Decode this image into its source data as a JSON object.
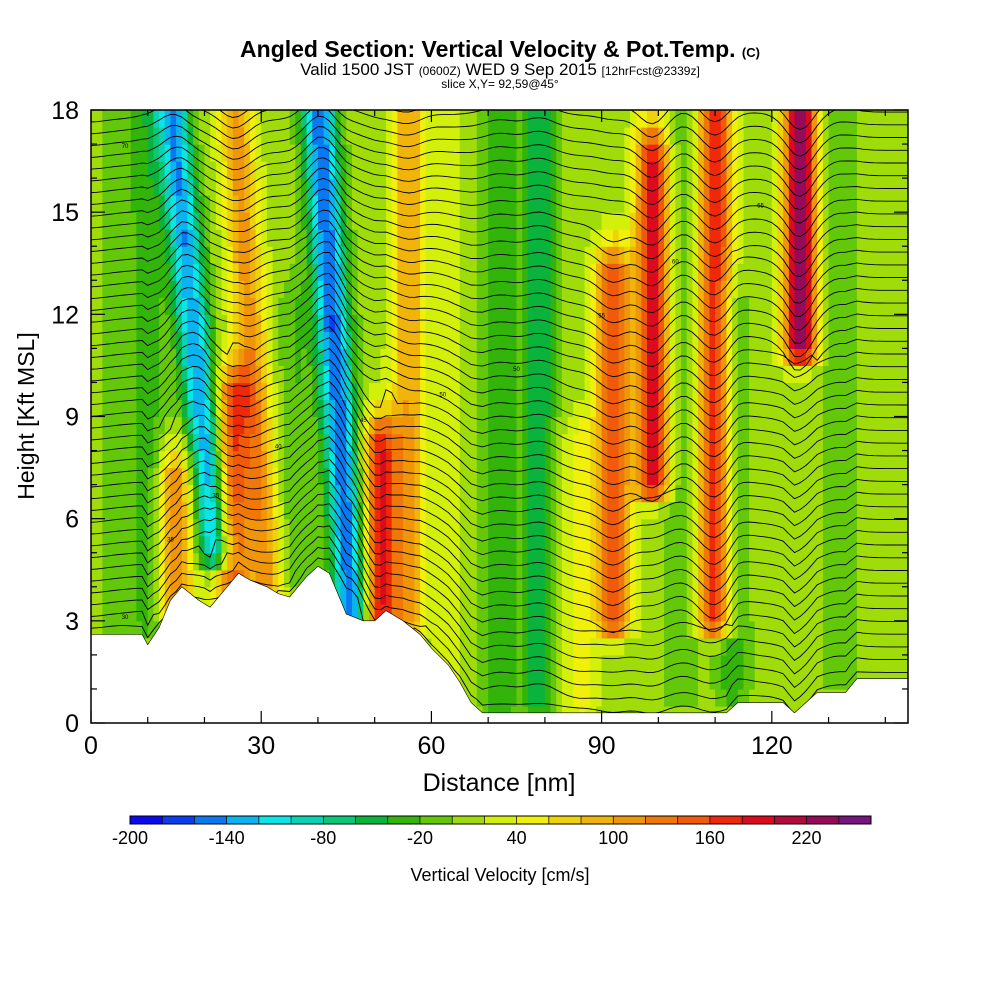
{
  "header": {
    "title": "Angled Section: Vertical Velocity & Pot.Temp.",
    "title_tag": "(C)",
    "valid_prefix": "Valid 1500 JST",
    "valid_zulu": "(0600Z)",
    "valid_day": "WED 9 Sep 2015",
    "forecast_tag": "[12hrFcst@2339z]",
    "slice": "slice X,Y= 92,59@45°"
  },
  "chart_data": {
    "type": "heatmap",
    "xlabel": "Distance [nm]",
    "ylabel": "Height [Kft MSL]",
    "xlim": [
      0,
      144
    ],
    "ylim": [
      0,
      18
    ],
    "x_ticks": [
      0,
      30,
      60,
      90,
      120
    ],
    "x_tick_labels": [
      "0",
      "30",
      "60",
      "90",
      "120"
    ],
    "y_ticks": [
      0,
      3,
      6,
      9,
      12,
      15,
      18
    ],
    "y_tick_labels": [
      "0",
      "3",
      "6",
      "9",
      "12",
      "15",
      "18"
    ],
    "colorbar": {
      "label": "Vertical Velocity [cm/s]",
      "min": -200,
      "max": 250,
      "step": 20,
      "tick_labels": [
        "-200",
        "-140",
        "-80",
        "-20",
        "40",
        "100",
        "160",
        "220"
      ],
      "colors": [
        "#0a0af0",
        "#0a3cf0",
        "#0a78f0",
        "#0ab4f0",
        "#0ae6e6",
        "#0ad2b4",
        "#0ac878",
        "#0ab43c",
        "#32b40a",
        "#64c80a",
        "#a0dc0a",
        "#d2f00a",
        "#f0f00a",
        "#f0d20a",
        "#f0b40a",
        "#f0960a",
        "#f0780a",
        "#f05a0a",
        "#f0280a",
        "#dc0a1e",
        "#b40a3c",
        "#960a5a",
        "#78147d"
      ]
    },
    "velocity_features": [
      {
        "x": 5,
        "bottom": 2.7,
        "top": 18,
        "value": -20,
        "tilt": 0
      },
      {
        "x": 10,
        "bottom": 3,
        "top": 18,
        "value": -40,
        "tilt": 0
      },
      {
        "x": 15,
        "bottom": 3.3,
        "top": 7,
        "value": 110,
        "tilt": 0
      },
      {
        "x": 22,
        "bottom": 5,
        "top": 18,
        "value": -150,
        "tilt": -6
      },
      {
        "x": 25,
        "bottom": 3.6,
        "top": 9.5,
        "value": 140,
        "tilt": 0
      },
      {
        "x": 31,
        "bottom": 4,
        "top": 18,
        "value": 100,
        "tilt": -4
      },
      {
        "x": 36,
        "bottom": 4.3,
        "top": 12,
        "value": -30,
        "tilt": 0
      },
      {
        "x": 46,
        "bottom": 3.2,
        "top": 18,
        "value": -170,
        "tilt": -4
      },
      {
        "x": 51,
        "bottom": 3,
        "top": 8,
        "value": 170,
        "tilt": 0
      },
      {
        "x": 56,
        "bottom": 3,
        "top": 18,
        "value": 90,
        "tilt": 0
      },
      {
        "x": 63,
        "bottom": 1.5,
        "top": 18,
        "value": 20,
        "tilt": 0
      },
      {
        "x": 72,
        "bottom": 0.5,
        "top": 18,
        "value": -50,
        "tilt": 0
      },
      {
        "x": 79,
        "bottom": 0.5,
        "top": 18,
        "value": -65,
        "tilt": 0
      },
      {
        "x": 86,
        "bottom": 0.5,
        "top": 8,
        "value": 40,
        "tilt": 0
      },
      {
        "x": 92,
        "bottom": 3,
        "top": 13,
        "value": 150,
        "tilt": 0
      },
      {
        "x": 99,
        "bottom": 7,
        "top": 16.5,
        "value": 180,
        "tilt": 0
      },
      {
        "x": 104,
        "bottom": 1,
        "top": 18,
        "value": -30,
        "tilt": 0
      },
      {
        "x": 110,
        "bottom": 3,
        "top": 18,
        "value": 170,
        "tilt": 0
      },
      {
        "x": 113,
        "bottom": 1,
        "top": 12,
        "value": -45,
        "tilt": 0
      },
      {
        "x": 125,
        "bottom": 11,
        "top": 18,
        "value": 220,
        "tilt": 0
      },
      {
        "x": 132,
        "bottom": 1.5,
        "top": 18,
        "value": -30,
        "tilt": 0
      },
      {
        "x": 139,
        "bottom": 1.5,
        "top": 18,
        "value": 0,
        "tilt": 0
      }
    ],
    "terrain": [
      [
        0,
        2.6
      ],
      [
        9,
        2.6
      ],
      [
        10,
        2.3
      ],
      [
        12,
        2.8
      ],
      [
        14,
        3.6
      ],
      [
        16,
        4
      ],
      [
        19,
        3.6
      ],
      [
        21,
        3.4
      ],
      [
        24,
        4
      ],
      [
        26,
        4.4
      ],
      [
        28,
        4.2
      ],
      [
        31,
        4
      ],
      [
        33,
        3.8
      ],
      [
        35,
        3.7
      ],
      [
        38,
        4.3
      ],
      [
        40,
        4.6
      ],
      [
        42,
        4.4
      ],
      [
        45,
        3.2
      ],
      [
        48,
        3
      ],
      [
        50,
        3
      ],
      [
        52,
        3.3
      ],
      [
        55,
        3
      ],
      [
        58,
        2.6
      ],
      [
        60,
        2.2
      ],
      [
        63,
        1.7
      ],
      [
        65,
        1.2
      ],
      [
        67,
        0.6
      ],
      [
        69,
        0.3
      ],
      [
        75,
        0.3
      ],
      [
        80,
        0.3
      ],
      [
        90,
        0.3
      ],
      [
        100,
        0.3
      ],
      [
        112,
        0.3
      ],
      [
        114,
        0.6
      ],
      [
        122,
        0.6
      ],
      [
        124,
        0.3
      ],
      [
        126,
        0.6
      ],
      [
        128,
        0.9
      ],
      [
        133,
        0.9
      ],
      [
        135,
        1.3
      ],
      [
        144,
        1.3
      ]
    ],
    "theta_contours": {
      "levels": 46,
      "surface_temp": 30,
      "top_temp": 75
    },
    "contour_labels": [
      "30",
      "35",
      "40",
      "45",
      "50",
      "55",
      "60",
      "65",
      "70"
    ]
  }
}
